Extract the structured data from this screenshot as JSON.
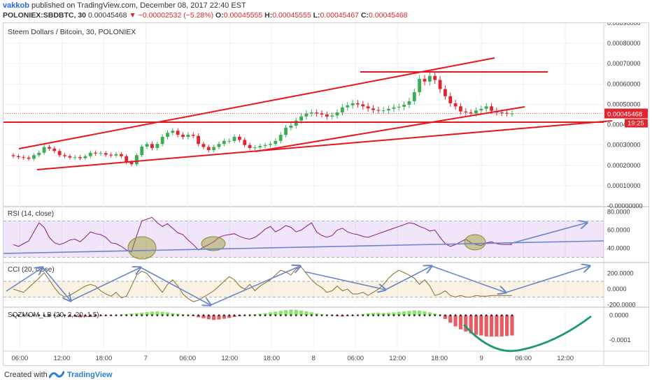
{
  "header": {
    "author": "vakkob",
    "published_text": "published on TradingView.com, December 08, 2017 22:40 EST",
    "symbol": "POLONIEX:SBDBTC, 30",
    "last": "0.00045468",
    "change": "−0.00002532 (−5.28%)",
    "open_label": "O:",
    "open": "0.00045555",
    "high_label": "H:",
    "high": "0.00045555",
    "low_label": "L:",
    "low": "0.00045467",
    "close_label": "C:",
    "close": "0.00045468"
  },
  "footer": {
    "created_label": "Created with",
    "brand": "TradingView"
  },
  "colors": {
    "up": "#3aae53",
    "down": "#e0252e",
    "rsi": "#8e1a8a",
    "cci": "#8c6c2a",
    "sqz_up": "#7ce25a",
    "sqz_down": "#e0252e",
    "trend": "#e8161d",
    "arrow": "#6a86c8",
    "green_curve": "#1f9a6c"
  },
  "chart_data": [
    {
      "type": "candlestick",
      "title": "Steem Dollars / Bitcoin, 30, POLONIEX",
      "ylim": [
        -5e-08,
        0.0009
      ],
      "y_ticks": [
        "0.00090000",
        "0.00080000",
        "0.00070000",
        "0.00060000",
        "0.00050000",
        "0.00040000",
        "0.00030000",
        "0.00020000",
        "0.00010000",
        "-0.00000000"
      ],
      "x_ticks": [
        "06:00",
        "12:00",
        "18:00",
        "7",
        "06:00",
        "12:00",
        "18:00",
        "8",
        "06:00",
        "12:00",
        "18:00",
        "9",
        "06:00",
        "12:00"
      ],
      "last_price_label": "0.00045468",
      "countdown_label": "19:25",
      "close_series": [
        0.000245,
        0.00024,
        0.000238,
        0.000232,
        0.00025,
        0.000262,
        0.00029,
        0.000282,
        0.00027,
        0.00025,
        0.000245,
        0.000238,
        0.00024,
        0.000235,
        0.000245,
        0.000262,
        0.000258,
        0.00026,
        0.000252,
        0.000248,
        0.000255,
        0.000245,
        0.000215,
        0.000205,
        0.00025,
        0.000292,
        0.000305,
        0.000285,
        0.000305,
        0.00034,
        0.00036,
        0.00037,
        0.00035,
        0.00034,
        0.00035,
        0.000345,
        0.000305,
        0.00029,
        0.000275,
        0.00029,
        0.000305,
        0.00032,
        0.00032,
        0.00034,
        0.000325,
        0.0003,
        0.000285,
        0.000288,
        0.000295,
        0.0003,
        0.000305,
        0.00032,
        0.00035,
        0.000385,
        0.000395,
        0.00042,
        0.00044,
        0.000455,
        0.00046,
        0.000455,
        0.00045,
        0.00044,
        0.000445,
        0.00046,
        0.000485,
        0.000495,
        0.000505,
        0.0005,
        0.00049,
        0.00048,
        0.000472,
        0.00047,
        0.00047,
        0.000478,
        0.000485,
        0.000488,
        0.000498,
        0.000515,
        0.00056,
        0.000625,
        0.000612,
        0.00064,
        0.00062,
        0.000575,
        0.00054,
        0.000505,
        0.00049,
        0.000465,
        0.00046,
        0.000455,
        0.00047,
        0.000478,
        0.00049,
        0.000468,
        0.00046,
        0.000458,
        0.000455,
        0.000455
      ]
    },
    {
      "type": "line",
      "title": "RSI (14, close)",
      "ylim": [
        25,
        85
      ],
      "y_ticks": [
        "80.0000",
        "60.0000",
        "40.0000"
      ],
      "band": [
        30,
        70
      ],
      "values": [
        44,
        42,
        45,
        48,
        58,
        68,
        63,
        52,
        46,
        44,
        46,
        49,
        50,
        47,
        52,
        58,
        56,
        55,
        52,
        46,
        45,
        42,
        38,
        36,
        54,
        70,
        72,
        74,
        68,
        64,
        67,
        62,
        57,
        55,
        49,
        44,
        38,
        41,
        44,
        47,
        52,
        54,
        55,
        56,
        53,
        51,
        50,
        52,
        56,
        61,
        64,
        58,
        61,
        65,
        63,
        58,
        60,
        64,
        68,
        58,
        54,
        52,
        54,
        60,
        62,
        58,
        56,
        55,
        53,
        52,
        54,
        56,
        58,
        60,
        62,
        64,
        66,
        68,
        67,
        64,
        62,
        59,
        60,
        52,
        45,
        42,
        44,
        47,
        50,
        46,
        44,
        43,
        46,
        47,
        45,
        44,
        44,
        44
      ]
    },
    {
      "type": "line",
      "title": "CCI (20, close)",
      "ylim": [
        -220,
        330
      ],
      "y_ticks": [
        "200.0000",
        "0.0000",
        "-200.0000"
      ],
      "band": [
        -100,
        100
      ],
      "values": [
        0,
        -20,
        -40,
        20,
        80,
        140,
        210,
        120,
        20,
        -60,
        -100,
        -80,
        -40,
        0,
        40,
        60,
        40,
        -20,
        -60,
        -90,
        -40,
        -110,
        -90,
        40,
        180,
        230,
        200,
        120,
        40,
        -40,
        60,
        120,
        40,
        -60,
        -120,
        -160,
        -140,
        -100,
        -60,
        -20,
        40,
        100,
        160,
        120,
        40,
        0,
        60,
        -20,
        40,
        80,
        120,
        180,
        240,
        220,
        180,
        260,
        280,
        200,
        120,
        60,
        20,
        -40,
        -20,
        40,
        -20,
        0,
        -60,
        -60,
        -40,
        -80,
        -40,
        0,
        60,
        140,
        200,
        240,
        210,
        180,
        140,
        60,
        120,
        40,
        -80,
        -60,
        -20,
        -80,
        -100,
        -80,
        -100,
        -100,
        -80,
        -90,
        -90,
        -80,
        -80,
        -80,
        -80,
        -80
      ]
    },
    {
      "type": "bar",
      "title": "SQZMOM_LB (20, 2, 20, 1.5)",
      "ylim": [
        -0.00014,
        3e-05
      ],
      "y_ticks": [
        "0.0000",
        "-0.0001"
      ],
      "values": [
        1e-07,
        2e-07,
        3e-07,
        5e-07,
        8e-07,
        1e-06,
        1.5e-06,
        2e-06,
        1e-06,
        -5e-07,
        -2e-06,
        -4e-06,
        -6e-06,
        -8e-06,
        -7e-06,
        -6e-06,
        -4e-06,
        -3e-06,
        -2e-06,
        -1e-06,
        1e-06,
        3e-06,
        5e-06,
        7e-06,
        9e-06,
        1.1e-05,
        1.3e-05,
        1.5e-05,
        1.6e-05,
        1.4e-05,
        1.2e-05,
        9e-06,
        6e-06,
        3e-06,
        1e-06,
        -3e-06,
        -8e-06,
        -1.2e-05,
        -1.6e-05,
        -1.9e-05,
        -1.7e-05,
        -1.4e-05,
        -1.1e-05,
        -7e-06,
        -4e-06,
        -1e-06,
        2e-06,
        4e-06,
        6e-06,
        9e-06,
        1.2e-05,
        1.5e-05,
        1.8e-05,
        2.1e-05,
        2.3e-05,
        2.2e-05,
        1.9e-05,
        1.6e-05,
        1.2e-05,
        8e-06,
        4e-06,
        1e-06,
        -2e-06,
        -4e-06,
        -5e-06,
        -3e-06,
        -1e-06,
        2e-06,
        5e-06,
        8e-06,
        1e-05,
        1.1e-05,
        1e-05,
        1.1e-05,
        1.2e-05,
        1.4e-05,
        1.6e-05,
        1.8e-05,
        2e-05,
        1.9e-05,
        1.6e-05,
        1.2e-05,
        7e-06,
        2e-06,
        -1.5e-05,
        -3e-05,
        -4.5e-05,
        -5.7e-05,
        -6.6e-05,
        -7.4e-05,
        -7.9e-05,
        -8.2e-05,
        -8.6e-05,
        -8.6e-05,
        -8.6e-05,
        -8.6e-05,
        -8.4e-05,
        -8.2e-05
      ]
    }
  ]
}
